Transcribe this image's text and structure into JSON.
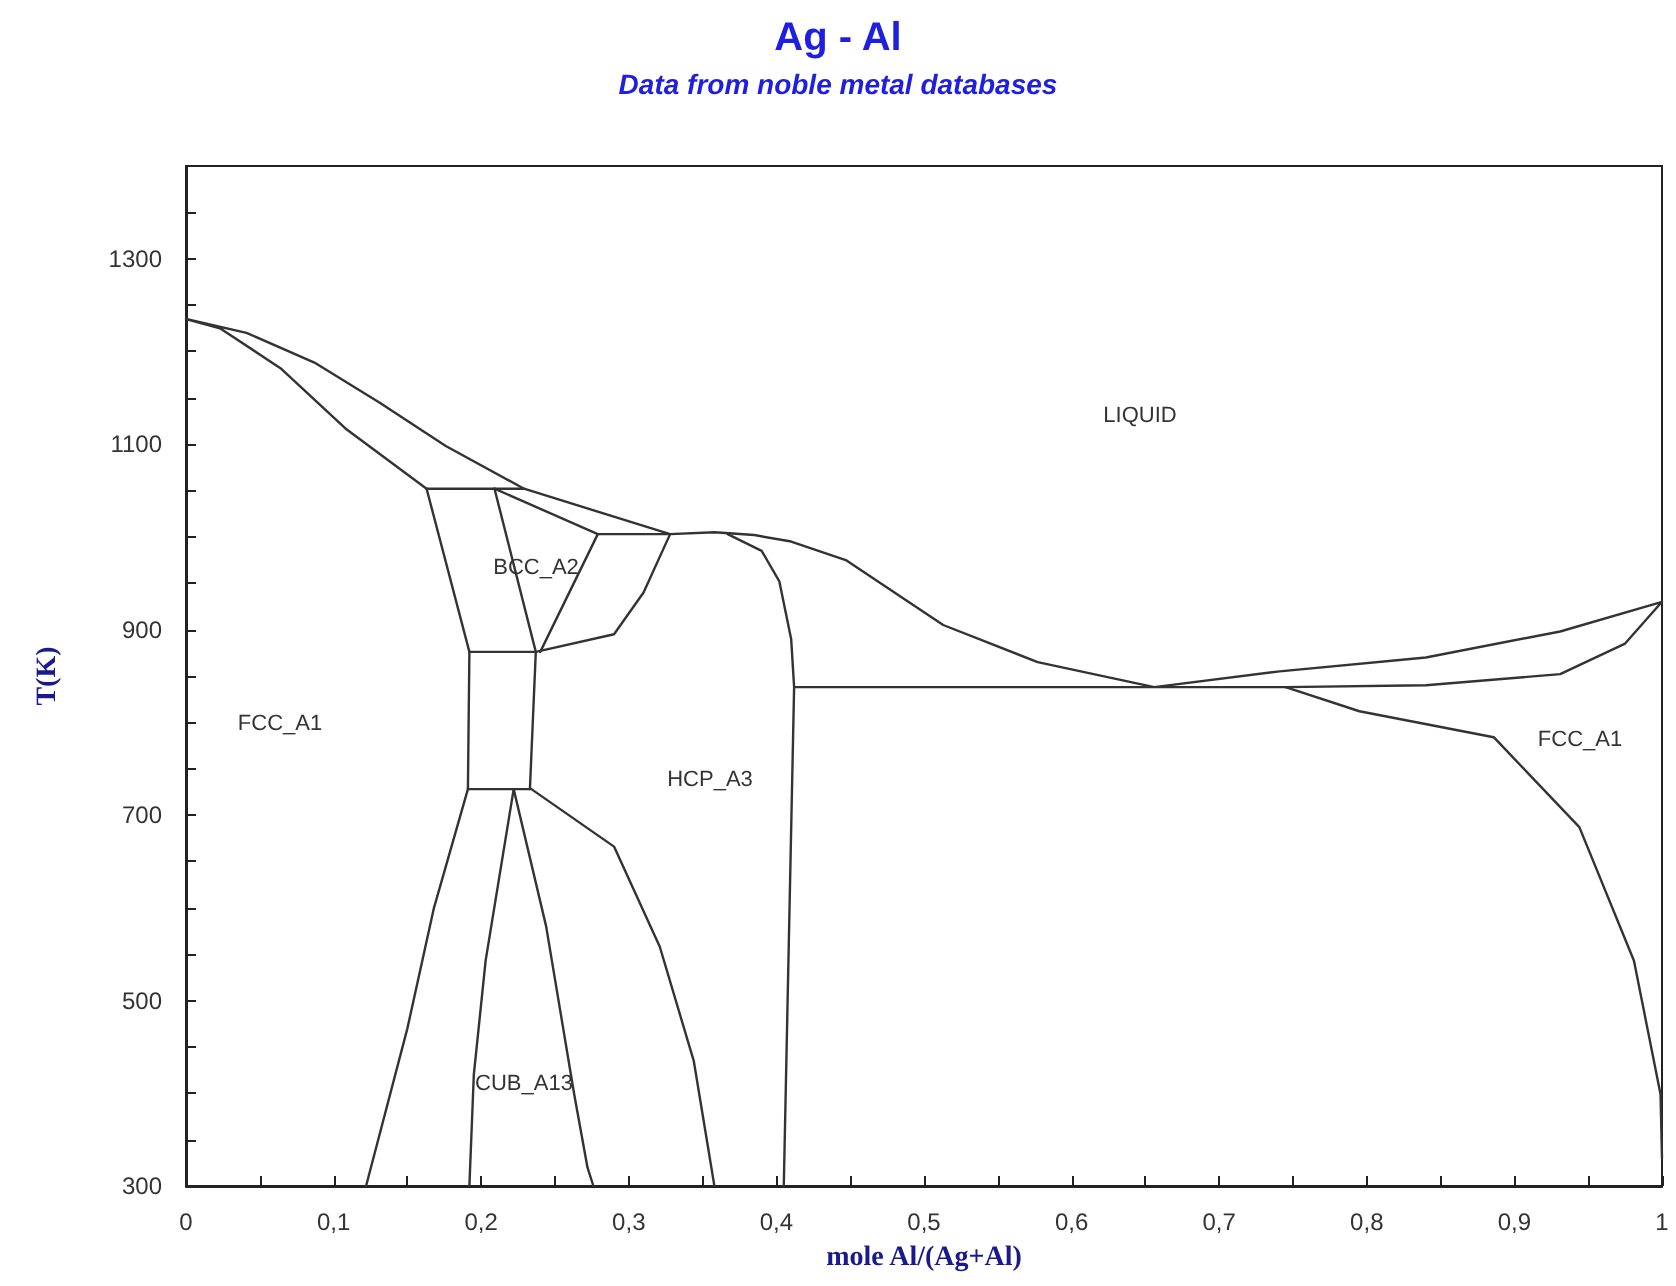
{
  "chart_data": {
    "type": "line",
    "title": "Ag - Al",
    "subtitle": "Data from noble metal databases",
    "xlabel": "mole Al/(Ag+Al)",
    "ylabel": "T(K)",
    "xlim": [
      0,
      1
    ],
    "ylim": [
      300,
      1400
    ],
    "xticks": [
      0,
      {
        "value": 0.05,
        "label": null
      },
      {
        "value": 0.1,
        "label": "0,1"
      },
      {
        "value": 0.15,
        "label": null
      },
      {
        "value": 0.2,
        "label": "0,2"
      },
      {
        "value": 0.25,
        "label": null
      },
      {
        "value": 0.3,
        "label": "0,3"
      },
      {
        "value": 0.35,
        "label": null
      },
      {
        "value": 0.4,
        "label": "0,4"
      },
      {
        "value": 0.45,
        "label": null
      },
      {
        "value": 0.5,
        "label": "0,5"
      },
      {
        "value": 0.55,
        "label": null
      },
      {
        "value": 0.6,
        "label": "0,6"
      },
      {
        "value": 0.65,
        "label": null
      },
      {
        "value": 0.7,
        "label": "0,7"
      },
      {
        "value": 0.75,
        "label": null
      },
      {
        "value": 0.8,
        "label": "0,8"
      },
      {
        "value": 0.85,
        "label": null
      },
      {
        "value": 0.9,
        "label": "0,9"
      },
      {
        "value": 0.95,
        "label": null
      },
      1
    ],
    "yticks": [
      300,
      {
        "value": 350,
        "label": null
      },
      {
        "value": 400,
        "label": null
      },
      {
        "value": 450,
        "label": null
      },
      500,
      {
        "value": 550,
        "label": null
      },
      {
        "value": 600,
        "label": null
      },
      {
        "value": 650,
        "label": null
      },
      700,
      {
        "value": 750,
        "label": null
      },
      {
        "value": 800,
        "label": null
      },
      {
        "value": 850,
        "label": null
      },
      900,
      {
        "value": 950,
        "label": null
      },
      {
        "value": 1000,
        "label": null
      },
      {
        "value": 1050,
        "label": null
      },
      1100,
      {
        "value": 1150,
        "label": null
      },
      {
        "value": 1200,
        "label": null
      },
      {
        "value": 1250,
        "label": null
      },
      1300,
      {
        "value": 1350,
        "label": null
      }
    ],
    "grid": false,
    "marker": "none",
    "line_style": "solid",
    "annotations": [
      "LIQUID",
      "BCC_A2",
      "FCC_A1",
      "HCP_A3",
      "CUB_A13",
      "FCC_A1"
    ],
    "series": [
      {
        "color": "#333333",
        "x": [
          0.163,
          0.229
        ],
        "values": [
          1052,
          1052
        ]
      },
      {
        "color": "#333333",
        "x": [
          0.209,
          0.279,
          0.328,
          0.31,
          0.29,
          0.237,
          0.192
        ],
        "values": [
          1052,
          1003,
          1003,
          940,
          895,
          876,
          876
        ]
      },
      {
        "color": "#333333",
        "x": [
          0.209,
          0.237,
          0.233
        ],
        "values": [
          1052,
          876,
          728
        ]
      },
      {
        "color": "#333333",
        "x": [
          0.163,
          0.192,
          0.191,
          0.168,
          0.15,
          0.122
        ],
        "values": [
          1052,
          876,
          728,
          600,
          470,
          300
        ]
      },
      {
        "color": "#333333",
        "x": [
          0.279,
          0.24
        ],
        "values": [
          1003,
          876
        ]
      },
      {
        "color": "#333333",
        "x": [
          0.163,
          0.108,
          0.064,
          0.023,
          0,
          0.041,
          0.087,
          0.131,
          0.176,
          0.229,
          0.328,
          0.358,
          0.385,
          0.41,
          0.447,
          0.513,
          0.577,
          0.656,
          0.741,
          0.84,
          0.931,
          1.0,
          0.975,
          0.931,
          0.84,
          0.745,
          0.412
        ],
        "values": [
          1052,
          1117,
          1182,
          1225,
          1235,
          1220,
          1188,
          1145,
          1098,
          1052,
          1003,
          1005,
          1002,
          995,
          975,
          905,
          865,
          838,
          855,
          870,
          898,
          930,
          885,
          852,
          840,
          838,
          838
        ]
      },
      {
        "color": "#333333",
        "x": [
          0.367,
          0.39,
          0.402,
          0.41,
          0.412,
          0.405
        ],
        "values": [
          1003,
          985,
          952,
          890,
          838,
          300
        ]
      },
      {
        "color": "#333333",
        "x": [
          0.745,
          0.795,
          0.886,
          0.944,
          0.981,
          0.999,
          1.0
        ],
        "values": [
          838,
          812,
          784,
          687,
          543,
          399,
          330
        ]
      },
      {
        "color": "#333333",
        "x": [
          0.191,
          0.233
        ],
        "values": [
          728,
          728
        ]
      },
      {
        "color": "#333333",
        "x": [
          0.222,
          0.203,
          0.195,
          0.192
        ],
        "values": [
          728,
          543,
          420,
          300
        ]
      },
      {
        "color": "#333333",
        "x": [
          0.222,
          0.244,
          0.263,
          0.272,
          0.276
        ],
        "values": [
          728,
          580,
          399,
          320,
          300
        ]
      },
      {
        "color": "#333333",
        "x": [
          0.234,
          0.29,
          0.321,
          0.344,
          0.358
        ],
        "values": [
          728,
          666,
          558,
          435,
          300
        ]
      }
    ]
  }
}
